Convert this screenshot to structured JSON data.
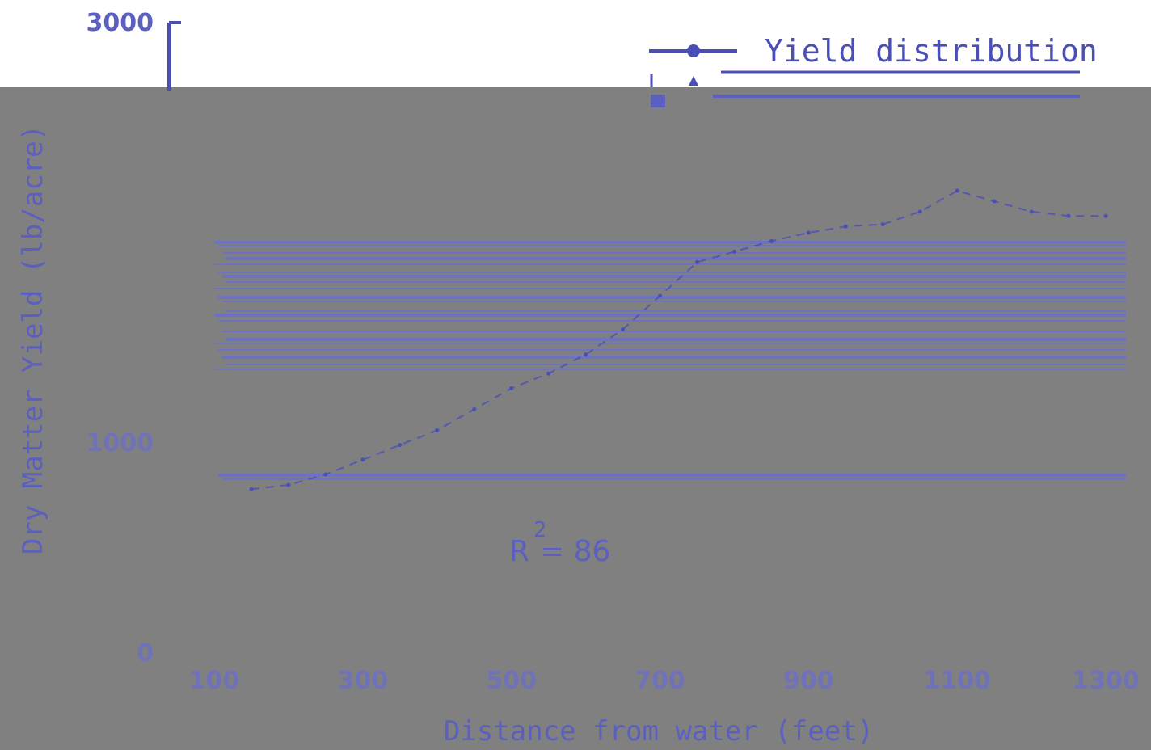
{
  "chart_data": {
    "type": "line",
    "title": "",
    "xlabel": "Distance from water (feet)",
    "ylabel": "Dry Matter Yield (lb/acre)",
    "ylim": [
      0,
      3000
    ],
    "xlim": [
      100,
      1300
    ],
    "x_ticks": [
      "100",
      "300",
      "500",
      "700",
      "900",
      "1100",
      "1300"
    ],
    "y_ticks": [
      "0",
      "1000",
      "3000"
    ],
    "grid": false,
    "legend_placement": "top-right",
    "annotation": {
      "text": "R",
      "superscript": "2",
      "value": "= 86"
    },
    "series": [
      {
        "name": "Yield distribution",
        "marker": "circle",
        "color": "#4a4fb8",
        "x": [
          150,
          200,
          250,
          300,
          350,
          400,
          450,
          500,
          550,
          600,
          650,
          700,
          750,
          800,
          850,
          900,
          950,
          1000,
          1050,
          1100,
          1150,
          1200,
          1250,
          1300
        ],
        "y": [
          780,
          800,
          850,
          920,
          990,
          1060,
          1160,
          1260,
          1330,
          1420,
          1540,
          1700,
          1860,
          1910,
          1960,
          2000,
          2030,
          2040,
          2100,
          2200,
          2150,
          2100,
          2080,
          2080
        ]
      }
    ],
    "legend_entries": [
      {
        "label": "Yield distribution",
        "marker": "circle"
      },
      {
        "label": "",
        "marker": "triangle"
      },
      {
        "label": "",
        "marker": "square"
      }
    ]
  }
}
